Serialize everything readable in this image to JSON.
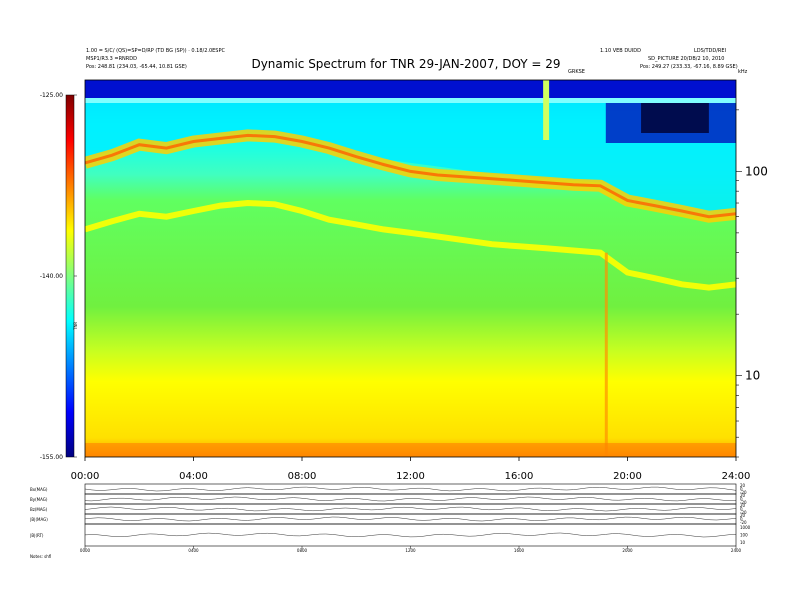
{
  "header": {
    "left_line1": "1.00 = S/C/ (QS)=SP=D/RP (TD BG (SP)) · 0.18/2.0ESPC",
    "left_line2": "MSP1/R3.3 =RNRDD",
    "left_line3": "Pos: 248.81 (234.03, -65.44, 10.81 GSE)",
    "right_line1": "1.10 VEB DUIDD",
    "right_line1b": "LDS/TDD/REI",
    "right_line2": "SD_PICTURE 20/DB/2 10, 2010",
    "right_line3": "Pos: 249.27 (233.33, -67.16, 8.89 GSE)",
    "mid_right": "GRKSE",
    "khz_label": "kHz"
  },
  "chart_data": [
    {
      "type": "heatmap",
      "title": "Dynamic Spectrum for TNR 29-JAN-2007, DOY = 29",
      "x_tick_labels": [
        "00:00",
        "04:00",
        "08:00",
        "12:00",
        "16:00",
        "20:00",
        "24:00"
      ],
      "x_ticks_hours": [
        0,
        4,
        8,
        12,
        16,
        20,
        24
      ],
      "xlim_hours": [
        0,
        24
      ],
      "y_scale": "log",
      "ylim_khz": [
        4,
        280
      ],
      "y_tick_values": [
        10,
        100
      ],
      "y_tick_labels": [
        "10",
        "100"
      ],
      "colorbar": {
        "labels": [
          "-125.00",
          "-140.00",
          "-155.00"
        ],
        "values": [
          -125,
          -140,
          -155
        ],
        "range": [
          -155,
          -125
        ],
        "axis_label": "TNR",
        "colors": [
          "#00007f",
          "#0000ff",
          "#007fff",
          "#00ffff",
          "#7fff7f",
          "#ffff00",
          "#ff7f00",
          "#ff0000",
          "#7f0000"
        ]
      },
      "features": {
        "upper_band_edge_khz": [
          [
            0,
            52
          ],
          [
            1,
            57
          ],
          [
            2,
            62
          ],
          [
            3,
            60
          ],
          [
            4,
            64
          ],
          [
            5,
            68
          ],
          [
            6,
            70
          ],
          [
            7,
            69
          ],
          [
            8,
            64
          ],
          [
            9,
            58
          ],
          [
            10,
            55
          ],
          [
            11,
            52
          ],
          [
            12,
            50
          ],
          [
            13,
            48
          ],
          [
            14,
            46
          ],
          [
            15,
            44
          ],
          [
            16,
            43
          ],
          [
            17,
            42
          ],
          [
            18,
            41
          ],
          [
            19,
            40
          ],
          [
            20,
            32
          ],
          [
            21,
            30
          ],
          [
            22,
            28
          ],
          [
            23,
            27
          ],
          [
            24,
            28
          ]
        ],
        "emission_edge_khz": [
          [
            0,
            110
          ],
          [
            1,
            120
          ],
          [
            2,
            135
          ],
          [
            3,
            130
          ],
          [
            4,
            140
          ],
          [
            5,
            145
          ],
          [
            6,
            150
          ],
          [
            7,
            148
          ],
          [
            8,
            140
          ],
          [
            9,
            130
          ],
          [
            10,
            118
          ],
          [
            11,
            108
          ],
          [
            12,
            100
          ],
          [
            13,
            96
          ],
          [
            14,
            94
          ],
          [
            15,
            92
          ],
          [
            16,
            90
          ],
          [
            17,
            88
          ],
          [
            18,
            86
          ],
          [
            19,
            85
          ],
          [
            20,
            72
          ],
          [
            21,
            68
          ],
          [
            22,
            64
          ],
          [
            23,
            60
          ],
          [
            24,
            62
          ]
        ],
        "burst_hour": 17.0,
        "dropout_hour": 19.2
      }
    },
    {
      "type": "line",
      "panels": [
        {
          "label": "Bx(MAG)",
          "right_ticks": [
            "20",
            "0",
            "-20"
          ]
        },
        {
          "label": "By(MAG)",
          "right_ticks": [
            "20",
            "0",
            "-20"
          ]
        },
        {
          "label": "Bz(MAG)",
          "right_ticks": [
            "20",
            "0",
            "-20"
          ]
        },
        {
          "label": "|B|(MAG)",
          "right_ticks": [
            "20",
            "0",
            "-20"
          ]
        },
        {
          "label": "|B|(RT)",
          "right_ticks": [
            "1000",
            "100",
            "10"
          ]
        }
      ],
      "x_tick_labels": [
        "0000",
        "0400",
        "0800",
        "1200",
        "1600",
        "2000",
        "2400"
      ],
      "footer_label": "Notes:  shfl"
    }
  ]
}
